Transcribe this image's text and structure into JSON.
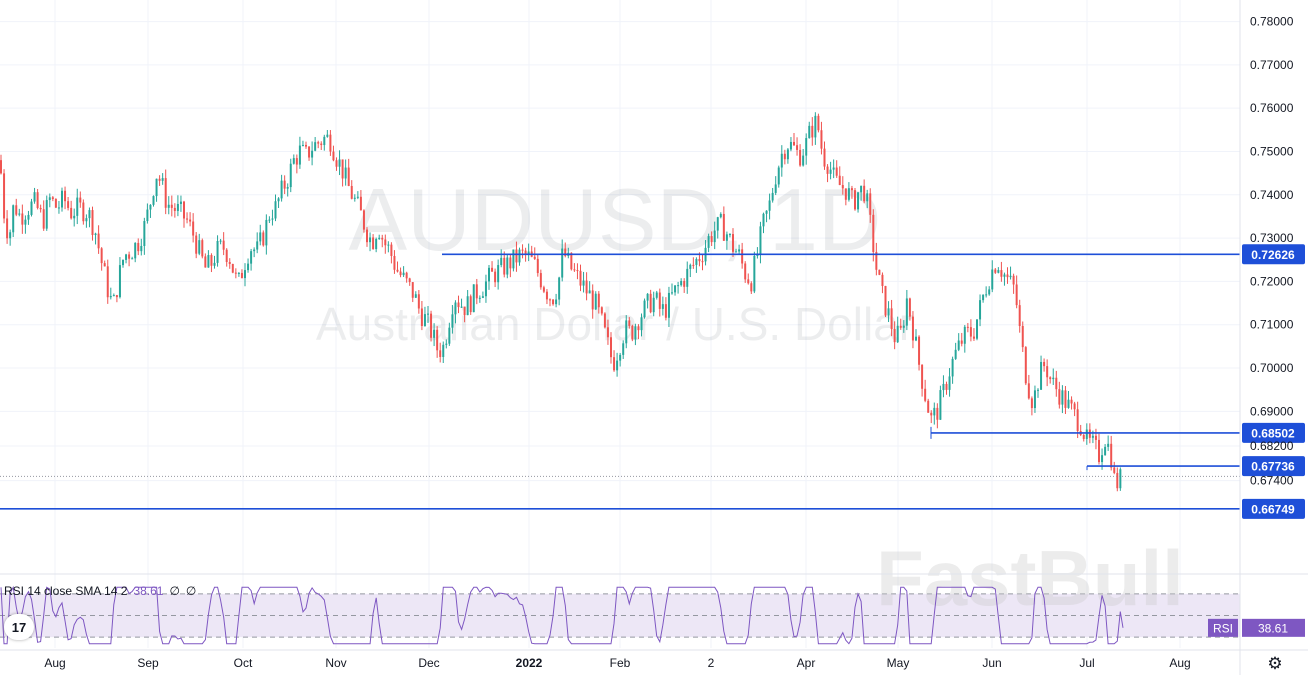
{
  "watermark": {
    "symbol": "AUDUSD, 1D",
    "name": "Australian Dollar / U.S. Dollar",
    "brand": "FastBull"
  },
  "rsi": {
    "legend_label": "RSI 14 close SMA 14 2",
    "value": "38.61",
    "extra1": "∅",
    "extra2": "∅",
    "badge_label": "RSI",
    "badge_value": "38.61"
  },
  "logo": {
    "text": "17"
  },
  "colors": {
    "up": "#26a69a",
    "down": "#ef5350",
    "level_line": "#1e4fd8",
    "rsi_line": "#7e57c2",
    "rsi_band": "#ede7f6",
    "grid": "#f0f3fa"
  },
  "chart_data": {
    "type": "candlestick",
    "symbol": "AUDUSD",
    "timeframe": "1D",
    "ylim": [
      0.6612,
      0.7814
    ],
    "y_ticks": [
      "0.78000",
      "0.77000",
      "0.76000",
      "0.75000",
      "0.74000",
      "0.73000",
      "0.72000",
      "0.71000",
      "0.70000",
      "0.69000",
      "0.68200",
      "0.67400"
    ],
    "x_ticks": [
      "Aug",
      "Sep",
      "Oct",
      "Nov",
      "Dec",
      "2022",
      "Feb",
      "2",
      "Apr",
      "May",
      "Jun",
      "Jul",
      "Aug"
    ],
    "levels": [
      {
        "label": "0.72626",
        "value": 0.72626
      },
      {
        "label": "0.68502",
        "value": 0.68502
      },
      {
        "label": "0.67736",
        "value": 0.67736
      },
      {
        "label": "0.66749",
        "value": 0.66749
      }
    ],
    "last_price": 0.675,
    "path": [
      [
        0,
        0.748
      ],
      [
        4,
        0.736
      ],
      [
        9,
        0.73
      ],
      [
        14,
        0.738
      ],
      [
        20,
        0.735
      ],
      [
        28,
        0.737
      ],
      [
        35,
        0.738
      ],
      [
        43,
        0.734
      ],
      [
        50,
        0.739
      ],
      [
        57,
        0.737
      ],
      [
        64,
        0.739
      ],
      [
        71,
        0.736
      ],
      [
        79,
        0.737
      ],
      [
        88,
        0.736
      ],
      [
        95,
        0.732
      ],
      [
        102,
        0.724
      ],
      [
        108,
        0.718
      ],
      [
        113,
        0.714
      ],
      [
        118,
        0.72
      ],
      [
        124,
        0.726
      ],
      [
        131,
        0.727
      ],
      [
        138,
        0.729
      ],
      [
        145,
        0.733
      ],
      [
        151,
        0.739
      ],
      [
        156,
        0.745
      ],
      [
        161,
        0.743
      ],
      [
        167,
        0.738
      ],
      [
        173,
        0.737
      ],
      [
        180,
        0.736
      ],
      [
        187,
        0.734
      ],
      [
        193,
        0.731
      ],
      [
        199,
        0.727
      ],
      [
        205,
        0.723
      ],
      [
        211,
        0.724
      ],
      [
        217,
        0.727
      ],
      [
        223,
        0.728
      ],
      [
        229,
        0.726
      ],
      [
        234,
        0.722
      ],
      [
        238,
        0.719
      ],
      [
        244,
        0.724
      ],
      [
        250,
        0.728
      ],
      [
        257,
        0.727
      ],
      [
        264,
        0.731
      ],
      [
        270,
        0.736
      ],
      [
        276,
        0.737
      ],
      [
        282,
        0.741
      ],
      [
        288,
        0.744
      ],
      [
        294,
        0.748
      ],
      [
        300,
        0.75
      ],
      [
        306,
        0.749
      ],
      [
        312,
        0.751
      ],
      [
        318,
        0.752
      ],
      [
        324,
        0.753
      ],
      [
        330,
        0.753
      ],
      [
        336,
        0.749
      ],
      [
        342,
        0.746
      ],
      [
        348,
        0.742
      ],
      [
        354,
        0.739
      ],
      [
        360,
        0.736
      ],
      [
        366,
        0.732
      ],
      [
        372,
        0.729
      ],
      [
        378,
        0.733
      ],
      [
        384,
        0.729
      ],
      [
        390,
        0.727
      ],
      [
        396,
        0.723
      ],
      [
        402,
        0.721
      ],
      [
        408,
        0.719
      ],
      [
        414,
        0.717
      ],
      [
        420,
        0.713
      ],
      [
        426,
        0.711
      ],
      [
        432,
        0.708
      ],
      [
        438,
        0.704
      ],
      [
        444,
        0.705
      ],
      [
        448,
        0.71
      ],
      [
        454,
        0.717
      ],
      [
        460,
        0.715
      ],
      [
        466,
        0.714
      ],
      [
        472,
        0.716
      ],
      [
        478,
        0.718
      ],
      [
        484,
        0.719
      ],
      [
        490,
        0.721
      ],
      [
        496,
        0.722
      ],
      [
        502,
        0.723
      ],
      [
        508,
        0.724
      ],
      [
        514,
        0.725
      ],
      [
        520,
        0.726
      ],
      [
        527,
        0.726
      ],
      [
        534,
        0.724
      ],
      [
        540,
        0.721
      ],
      [
        546,
        0.718
      ],
      [
        552,
        0.716
      ],
      [
        558,
        0.719
      ],
      [
        563,
        0.727
      ],
      [
        567,
        0.725
      ],
      [
        571,
        0.723
      ],
      [
        577,
        0.721
      ],
      [
        583,
        0.719
      ],
      [
        589,
        0.717
      ],
      [
        595,
        0.715
      ],
      [
        601,
        0.711
      ],
      [
        607,
        0.706
      ],
      [
        613,
        0.701
      ],
      [
        619,
        0.705
      ],
      [
        625,
        0.709
      ],
      [
        631,
        0.708
      ],
      [
        637,
        0.711
      ],
      [
        643,
        0.713
      ],
      [
        649,
        0.715
      ],
      [
        655,
        0.716
      ],
      [
        661,
        0.713
      ],
      [
        667,
        0.714
      ],
      [
        673,
        0.717
      ],
      [
        679,
        0.719
      ],
      [
        685,
        0.721
      ],
      [
        691,
        0.723
      ],
      [
        697,
        0.725
      ],
      [
        703,
        0.727
      ],
      [
        709,
        0.73
      ],
      [
        715,
        0.732
      ],
      [
        721,
        0.733
      ],
      [
        727,
        0.731
      ],
      [
        733,
        0.728
      ],
      [
        739,
        0.726
      ],
      [
        745,
        0.722
      ],
      [
        751,
        0.72
      ],
      [
        757,
        0.726
      ],
      [
        763,
        0.733
      ],
      [
        769,
        0.737
      ],
      [
        775,
        0.744
      ],
      [
        781,
        0.749
      ],
      [
        787,
        0.752
      ],
      [
        793,
        0.751
      ],
      [
        799,
        0.749
      ],
      [
        805,
        0.751
      ],
      [
        811,
        0.755
      ],
      [
        817,
        0.757
      ],
      [
        823,
        0.749
      ],
      [
        829,
        0.747
      ],
      [
        835,
        0.743
      ],
      [
        841,
        0.742
      ],
      [
        847,
        0.741
      ],
      [
        853,
        0.738
      ],
      [
        859,
        0.741
      ],
      [
        865,
        0.741
      ],
      [
        871,
        0.732
      ],
      [
        877,
        0.722
      ],
      [
        883,
        0.716
      ],
      [
        889,
        0.712
      ],
      [
        895,
        0.707
      ],
      [
        901,
        0.708
      ],
      [
        907,
        0.716
      ],
      [
        913,
        0.709
      ],
      [
        919,
        0.701
      ],
      [
        925,
        0.694
      ],
      [
        931,
        0.688
      ],
      [
        937,
        0.69
      ],
      [
        943,
        0.694
      ],
      [
        949,
        0.699
      ],
      [
        955,
        0.703
      ],
      [
        961,
        0.706
      ],
      [
        967,
        0.708
      ],
      [
        973,
        0.708
      ],
      [
        979,
        0.713
      ],
      [
        985,
        0.718
      ],
      [
        991,
        0.722
      ],
      [
        997,
        0.725
      ],
      [
        1003,
        0.722
      ],
      [
        1009,
        0.72
      ],
      [
        1015,
        0.718
      ],
      [
        1021,
        0.706
      ],
      [
        1027,
        0.697
      ],
      [
        1033,
        0.692
      ],
      [
        1039,
        0.698
      ],
      [
        1045,
        0.701
      ],
      [
        1051,
        0.697
      ],
      [
        1057,
        0.695
      ],
      [
        1063,
        0.693
      ],
      [
        1069,
        0.691
      ],
      [
        1075,
        0.689
      ],
      [
        1081,
        0.687
      ],
      [
        1087,
        0.683
      ],
      [
        1093,
        0.682
      ],
      [
        1099,
        0.68
      ],
      [
        1105,
        0.684
      ],
      [
        1111,
        0.68
      ],
      [
        1115,
        0.673
      ],
      [
        1119,
        0.674
      ],
      [
        1123,
        0.675
      ]
    ],
    "rsi": {
      "upper": 70,
      "middle": 50,
      "lower": 30,
      "current": 38.61
    }
  }
}
